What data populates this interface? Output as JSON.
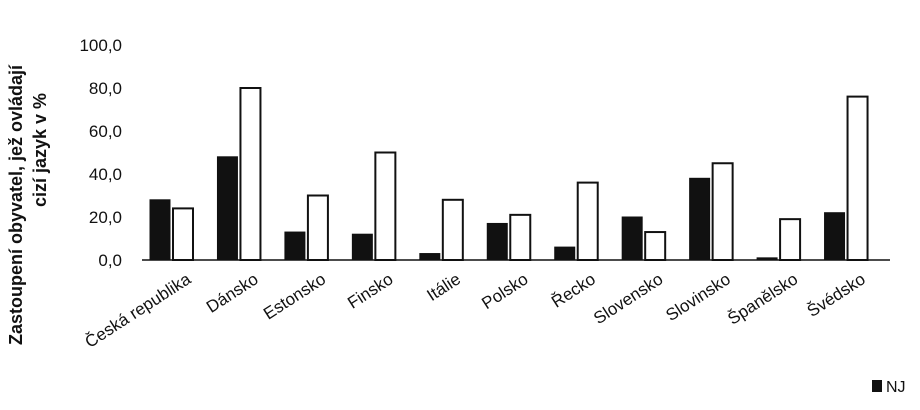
{
  "chart_data": {
    "type": "bar",
    "title": "",
    "xlabel": "",
    "ylabel_lines": [
      "Zastoupení obyvatel, jež ovládají",
      "cizí jazyk  v %"
    ],
    "categories": [
      "Česká republika",
      "Dánsko",
      "Estonsko",
      "Finsko",
      "Itálie",
      "Polsko",
      "Řecko",
      "Slovensko",
      "Slovinsko",
      "Španělsko",
      "Švédsko"
    ],
    "series": [
      {
        "name": "NJ",
        "color": "#111111",
        "values": [
          28,
          48,
          13,
          12,
          3,
          17,
          6,
          20,
          38,
          1,
          22
        ]
      },
      {
        "color": "#ffffff",
        "values": [
          24,
          80,
          30,
          50,
          28,
          21,
          36,
          13,
          45,
          19,
          76
        ]
      }
    ],
    "ylim": [
      0,
      100
    ],
    "yticks": [
      "0,0",
      "20,0",
      "40,0",
      "60,0",
      "80,0",
      "100,0"
    ],
    "ytick_values": [
      0,
      20,
      40,
      60,
      80,
      100
    ],
    "grid": false,
    "legend": {
      "position": "bottom-right",
      "entries": [
        "NJ"
      ]
    }
  }
}
